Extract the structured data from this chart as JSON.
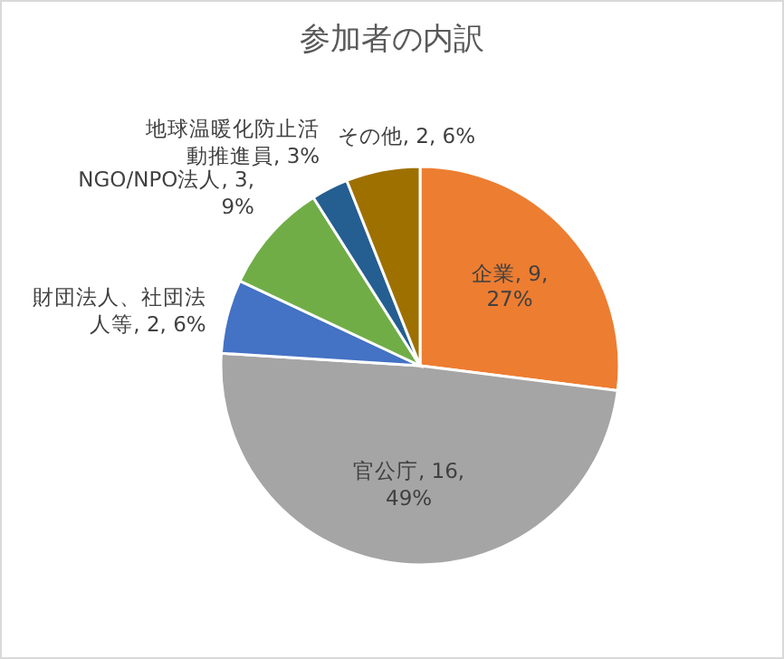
{
  "chart_data": {
    "type": "pie",
    "title": "参加者の内訳",
    "categories": [
      "企業",
      "官公庁",
      "財団法人、社団法人等",
      "NGO/NPO法人",
      "地球温暖化防止活動推進員",
      "その他"
    ],
    "values": [
      27,
      49,
      6,
      9,
      3,
      6
    ],
    "value_labels": [
      "9, 27%",
      "16, 49%",
      "2, 6%",
      "3, 9%",
      "3%",
      "2, 6%"
    ],
    "colors": [
      "#ed7d31",
      "#a5a5a5",
      "#4472c4",
      "#70ad47",
      "#255e91",
      "#9e7000"
    ]
  }
}
